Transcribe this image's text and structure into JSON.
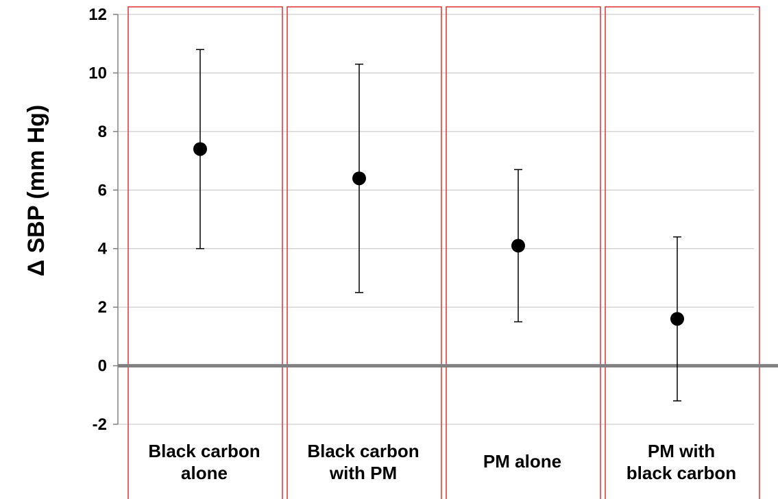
{
  "chart_data": {
    "type": "scatter",
    "title": "",
    "xlabel": "",
    "ylabel": "Δ SBP (mm Hg)",
    "ylim": [
      -2,
      12
    ],
    "yticks": [
      -2,
      0,
      2,
      4,
      6,
      8,
      10,
      12
    ],
    "grid": true,
    "legend": "none",
    "categories": [
      [
        "Black carbon",
        "alone"
      ],
      [
        "Black carbon",
        "with PM"
      ],
      [
        "PM alone"
      ],
      [
        "PM with",
        "black carbon"
      ]
    ],
    "series": [
      {
        "values": [
          7.4,
          6.4,
          4.1,
          1.6
        ],
        "lower": [
          4.0,
          2.5,
          1.5,
          -1.2
        ],
        "upper": [
          10.8,
          10.3,
          6.7,
          4.4
        ]
      }
    ],
    "colors": {
      "point": "#000000",
      "errorbar": "#000000",
      "zero_line": "#808080",
      "grid": "#c0c0c0",
      "panel_border": "#e03030"
    }
  }
}
